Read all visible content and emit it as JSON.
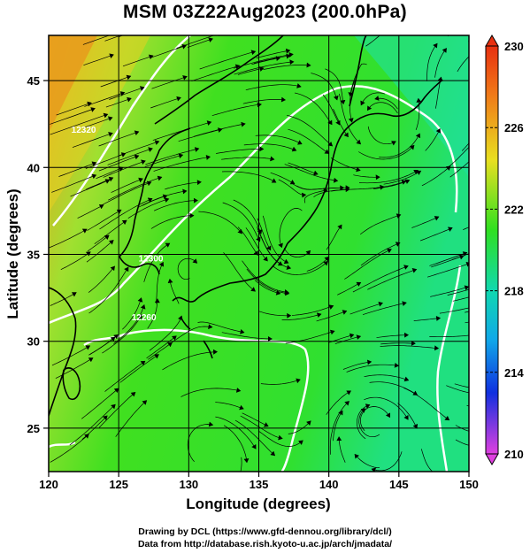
{
  "title": "MSM 03Z22Aug2023 (200.0hPa)",
  "map": {
    "lon_range": [
      120,
      150
    ],
    "lat_range": [
      22.5,
      47.6
    ],
    "lon_ticks": [
      120,
      125,
      130,
      135,
      140,
      145,
      150
    ],
    "lat_ticks": [
      25,
      30,
      35,
      40,
      45
    ],
    "xlabel": "Longitude (degrees)",
    "ylabel": "Latitude  (degrees)",
    "grid": true,
    "field": "shaded temperature/thickness field with white contours and black streamlines",
    "colors": {
      "low": "#e040e0",
      "mid_low": "#1030e0",
      "mid": "#10c8a0",
      "mid_high": "#30e020",
      "high_mid": "#e8e020",
      "high": "#e83010",
      "contour": "#ffffff",
      "streamline": "#000000",
      "coastline": "#000000"
    },
    "contour_labels": [
      {
        "text": "12260",
        "lon": 126.8,
        "lat": 31.2
      },
      {
        "text": "12300",
        "lon": 127.3,
        "lat": 34.6
      },
      {
        "text": "12320",
        "lon": 122.5,
        "lat": 42.0
      }
    ]
  },
  "colorbar": {
    "min": 210,
    "max": 230,
    "labels": [
      "230",
      "226",
      "222",
      "218",
      "214",
      "210"
    ],
    "label_values": [
      230,
      226,
      222,
      218,
      214,
      210
    ],
    "colors": [
      "#e83010",
      "#f07a18",
      "#e8e020",
      "#30e020",
      "#10c8a0",
      "#1070e0",
      "#1030e0",
      "#e040e0"
    ]
  },
  "credits": {
    "line1": "Drawing by DCL (https://www.gfd-dennou.org/library/dcl/)",
    "line2": "Data from http://database.rish.kyoto-u.ac.jp/arch/jmadata/"
  }
}
